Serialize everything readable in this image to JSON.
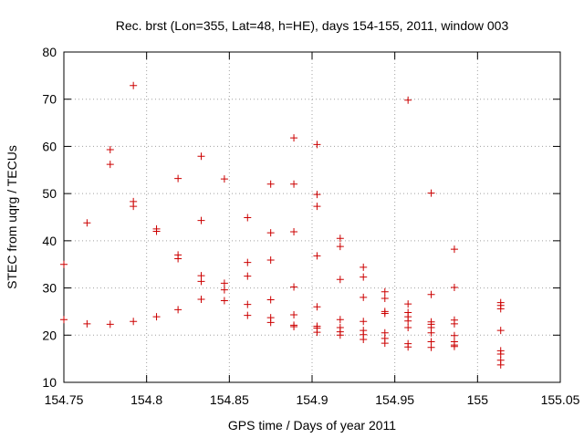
{
  "chart_data": {
    "type": "scatter",
    "title": "Rec. brst (Lon=355, Lat=48, h=HE), days 154-155, 2011, window 003",
    "xlabel": "GPS time / Days of year 2011",
    "ylabel": "STEC from uqrg / TECUs",
    "xlim": [
      154.75,
      155.05
    ],
    "ylim": [
      10,
      80
    ],
    "xticks": [
      154.75,
      154.8,
      154.85,
      154.9,
      154.95,
      155,
      155.05
    ],
    "xtick_labels": [
      "154.75",
      "154.8",
      "154.85",
      "154.9",
      "154.95",
      "155",
      "155.05"
    ],
    "yticks": [
      10,
      20,
      30,
      40,
      50,
      60,
      70,
      80
    ],
    "ytick_labels": [
      "10",
      "20",
      "30",
      "40",
      "50",
      "60",
      "70",
      "80"
    ],
    "grid": true,
    "marker": "+",
    "color": "#cc0000",
    "series": [
      {
        "name": "STEC",
        "points": [
          [
            154.75,
            35.0
          ],
          [
            154.75,
            23.3
          ],
          [
            154.764,
            43.8
          ],
          [
            154.764,
            22.4
          ],
          [
            154.778,
            59.3
          ],
          [
            154.778,
            56.2
          ],
          [
            154.778,
            22.3
          ],
          [
            154.792,
            72.9
          ],
          [
            154.792,
            48.3
          ],
          [
            154.792,
            47.3
          ],
          [
            154.792,
            22.9
          ],
          [
            154.806,
            42.5
          ],
          [
            154.806,
            42.0
          ],
          [
            154.806,
            23.9
          ],
          [
            154.819,
            53.2
          ],
          [
            154.819,
            37.0
          ],
          [
            154.819,
            36.2
          ],
          [
            154.819,
            25.4
          ],
          [
            154.833,
            57.9
          ],
          [
            154.833,
            44.3
          ],
          [
            154.833,
            32.6
          ],
          [
            154.833,
            31.4
          ],
          [
            154.833,
            27.6
          ],
          [
            154.847,
            53.1
          ],
          [
            154.847,
            31.0
          ],
          [
            154.847,
            29.6
          ],
          [
            154.847,
            27.3
          ],
          [
            154.861,
            44.9
          ],
          [
            154.861,
            35.4
          ],
          [
            154.861,
            32.5
          ],
          [
            154.861,
            26.5
          ],
          [
            154.861,
            24.2
          ],
          [
            154.875,
            52.0
          ],
          [
            154.875,
            41.7
          ],
          [
            154.875,
            35.9
          ],
          [
            154.875,
            27.5
          ],
          [
            154.875,
            23.7
          ],
          [
            154.875,
            22.7
          ],
          [
            154.889,
            61.8
          ],
          [
            154.889,
            52.0
          ],
          [
            154.889,
            41.9
          ],
          [
            154.889,
            30.2
          ],
          [
            154.889,
            24.3
          ],
          [
            154.889,
            22.1
          ],
          [
            154.889,
            21.8
          ],
          [
            154.903,
            60.4
          ],
          [
            154.903,
            49.8
          ],
          [
            154.903,
            47.3
          ],
          [
            154.903,
            36.8
          ],
          [
            154.903,
            26.0
          ],
          [
            154.903,
            21.9
          ],
          [
            154.903,
            21.5
          ],
          [
            154.903,
            20.6
          ],
          [
            154.917,
            40.5
          ],
          [
            154.917,
            38.8
          ],
          [
            154.917,
            31.8
          ],
          [
            154.917,
            23.3
          ],
          [
            154.917,
            21.6
          ],
          [
            154.917,
            20.7
          ],
          [
            154.917,
            20.0
          ],
          [
            154.931,
            34.4
          ],
          [
            154.931,
            32.3
          ],
          [
            154.931,
            28.0
          ],
          [
            154.931,
            22.9
          ],
          [
            154.931,
            21.0
          ],
          [
            154.931,
            20.1
          ],
          [
            154.931,
            19.1
          ],
          [
            154.944,
            29.2
          ],
          [
            154.944,
            27.8
          ],
          [
            154.944,
            25.0
          ],
          [
            154.944,
            24.6
          ],
          [
            154.944,
            20.5
          ],
          [
            154.944,
            19.3
          ],
          [
            154.944,
            18.3
          ],
          [
            154.958,
            69.8
          ],
          [
            154.958,
            26.6
          ],
          [
            154.958,
            24.8
          ],
          [
            154.958,
            23.9
          ],
          [
            154.958,
            23.0
          ],
          [
            154.958,
            21.6
          ],
          [
            154.958,
            18.2
          ],
          [
            154.958,
            17.5
          ],
          [
            154.972,
            50.1
          ],
          [
            154.972,
            28.6
          ],
          [
            154.972,
            22.8
          ],
          [
            154.972,
            22.3
          ],
          [
            154.972,
            21.6
          ],
          [
            154.972,
            20.5
          ],
          [
            154.972,
            18.6
          ],
          [
            154.972,
            17.4
          ],
          [
            154.986,
            38.2
          ],
          [
            154.986,
            30.1
          ],
          [
            154.986,
            23.2
          ],
          [
            154.986,
            22.4
          ],
          [
            154.986,
            19.9
          ],
          [
            154.986,
            18.6
          ],
          [
            154.986,
            17.9
          ],
          [
            154.986,
            17.6
          ],
          [
            155.014,
            26.9
          ],
          [
            155.014,
            26.3
          ],
          [
            155.014,
            25.6
          ],
          [
            155.014,
            21.0
          ],
          [
            155.014,
            16.7
          ],
          [
            155.014,
            16.0
          ],
          [
            155.014,
            14.7
          ],
          [
            155.014,
            13.7
          ]
        ]
      }
    ]
  }
}
